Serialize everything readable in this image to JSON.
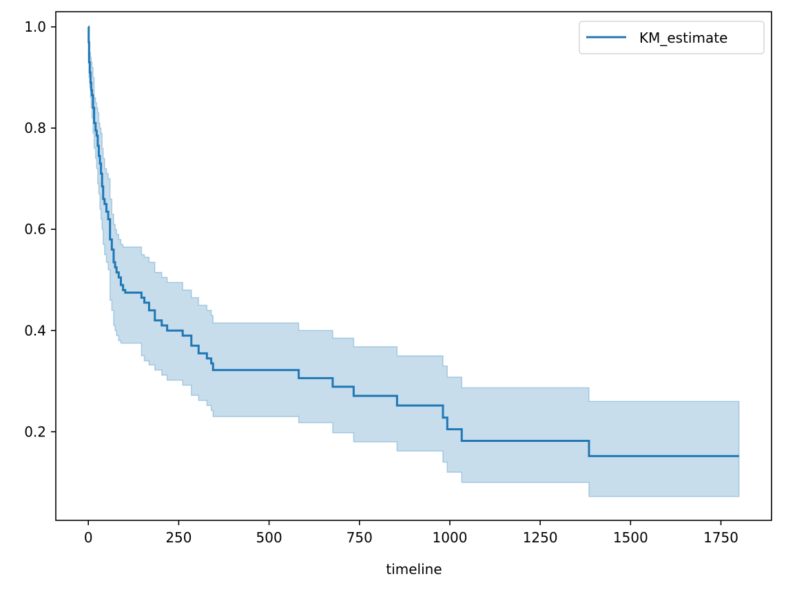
{
  "chart_data": {
    "type": "line",
    "title": "",
    "xlabel": "timeline",
    "ylabel": "",
    "xlim": [
      -90,
      1890
    ],
    "ylim": [
      0.025,
      1.03
    ],
    "xticks": [
      0,
      250,
      500,
      750,
      1000,
      1250,
      1500,
      1750
    ],
    "yticks": [
      0.2,
      0.4,
      0.6,
      0.8,
      1.0
    ],
    "ytick_format": 1,
    "grid": false,
    "legend": {
      "placement": "top-right",
      "entries": [
        "KM_estimate"
      ]
    },
    "colors": {
      "line": "#1f77b4",
      "band_fill": "#1f77b4",
      "band_opacity": 0.25
    },
    "series": [
      {
        "name": "KM_estimate",
        "step": "post",
        "x": [
          0,
          1,
          2,
          4,
          6,
          8,
          10,
          13,
          16,
          20,
          23,
          26,
          29,
          32,
          35,
          38,
          41,
          45,
          50,
          55,
          60,
          65,
          70,
          74,
          78,
          84,
          90,
          96,
          102,
          147,
          155,
          168,
          184,
          203,
          218,
          261,
          285,
          305,
          328,
          340,
          345,
          582,
          676,
          734,
          854,
          981,
          993,
          1033,
          1385,
          1800
        ],
        "y": [
          1.0,
          0.97,
          0.93,
          0.91,
          0.89,
          0.875,
          0.865,
          0.84,
          0.81,
          0.795,
          0.785,
          0.765,
          0.745,
          0.73,
          0.71,
          0.685,
          0.66,
          0.65,
          0.635,
          0.62,
          0.58,
          0.56,
          0.535,
          0.525,
          0.515,
          0.505,
          0.49,
          0.48,
          0.475,
          0.465,
          0.455,
          0.44,
          0.42,
          0.41,
          0.4,
          0.39,
          0.37,
          0.355,
          0.345,
          0.335,
          0.322,
          0.306,
          0.289,
          0.271,
          0.252,
          0.228,
          0.205,
          0.182,
          0.152,
          0.152
        ],
        "ci_lower": [
          1.0,
          0.94,
          0.9,
          0.88,
          0.86,
          0.84,
          0.82,
          0.79,
          0.76,
          0.74,
          0.72,
          0.69,
          0.67,
          0.64,
          0.62,
          0.6,
          0.57,
          0.55,
          0.535,
          0.52,
          0.46,
          0.44,
          0.41,
          0.4,
          0.39,
          0.38,
          0.375,
          0.375,
          0.375,
          0.35,
          0.34,
          0.332,
          0.322,
          0.312,
          0.302,
          0.292,
          0.272,
          0.262,
          0.252,
          0.242,
          0.23,
          0.218,
          0.198,
          0.18,
          0.162,
          0.14,
          0.12,
          0.1,
          0.072,
          0.072
        ],
        "ci_upper": [
          1.0,
          0.99,
          0.97,
          0.95,
          0.94,
          0.93,
          0.92,
          0.9,
          0.86,
          0.85,
          0.84,
          0.83,
          0.81,
          0.8,
          0.79,
          0.76,
          0.74,
          0.72,
          0.71,
          0.7,
          0.66,
          0.63,
          0.61,
          0.6,
          0.59,
          0.58,
          0.57,
          0.565,
          0.565,
          0.55,
          0.545,
          0.535,
          0.515,
          0.505,
          0.495,
          0.48,
          0.465,
          0.45,
          0.44,
          0.43,
          0.415,
          0.4,
          0.385,
          0.368,
          0.35,
          0.33,
          0.308,
          0.287,
          0.26,
          0.26
        ]
      }
    ]
  }
}
